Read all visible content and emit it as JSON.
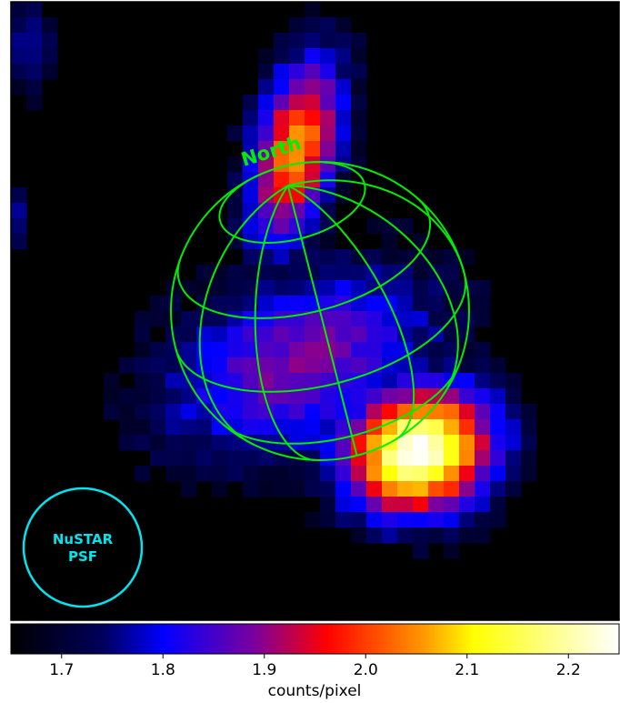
{
  "chart_data": {
    "type": "heatmap",
    "colormap": "gist_heat-like (black-blue-red-yellow-white)",
    "annotations": {
      "north_label": "North",
      "psf_label_line1": "NuSTAR",
      "psf_label_line2": "PSF"
    },
    "colorbar": {
      "range": [
        1.65,
        2.25
      ],
      "ticks": [
        1.7,
        1.8,
        1.9,
        2.0,
        2.1,
        2.2
      ],
      "tick_labels": [
        "1.7",
        "1.8",
        "1.9",
        "2.0",
        "2.1",
        "2.2"
      ],
      "label": "counts/pixel",
      "stops": [
        {
          "value": 0.0,
          "color": "#000000"
        },
        {
          "value": 0.15,
          "color": "#00005a"
        },
        {
          "value": 0.25,
          "color": "#0000ff"
        },
        {
          "value": 0.4,
          "color": "#7a009e"
        },
        {
          "value": 0.52,
          "color": "#ff0000"
        },
        {
          "value": 0.68,
          "color": "#ff9a00"
        },
        {
          "value": 0.76,
          "color": "#ffff00"
        },
        {
          "value": 1.0,
          "color": "#ffffff"
        }
      ]
    },
    "image_extent_counts_per_pixel": [
      1.65,
      2.25
    ],
    "emission_blobs": [
      {
        "name": "north-knot",
        "peak": 2.05
      },
      {
        "name": "south-bright-knot",
        "peak": 2.25
      },
      {
        "name": "upper-left-faint",
        "peak": 1.78
      },
      {
        "name": "left-edge-faint",
        "peak": 1.76
      }
    ],
    "colors": {
      "grid": "#00ee00",
      "psf_circle": "#00e5f0",
      "background": "#000000"
    }
  }
}
